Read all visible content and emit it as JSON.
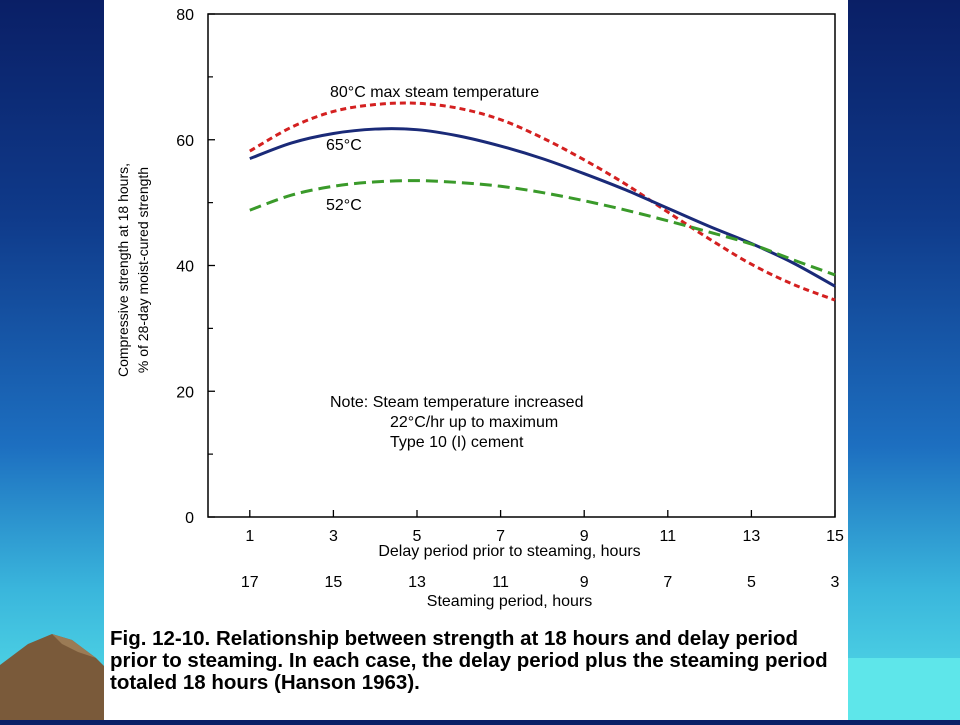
{
  "chart_data": {
    "type": "line",
    "ylabel": "Compressive strength at 18 hours, % of 28-day moist-cured strength",
    "ylabel_lines": [
      "Compressive strength at 18 hours,",
      "% of 28-day moist-cured strength"
    ],
    "xlabel": "Delay period prior to steaming, hours",
    "x2label": "Steaming period, hours",
    "ylim": [
      0,
      80
    ],
    "xlim": [
      0,
      15
    ],
    "yticks": [
      0,
      20,
      40,
      60,
      80
    ],
    "xticks": [
      1,
      3,
      5,
      7,
      9,
      11,
      13,
      15
    ],
    "x2ticks": [
      17,
      15,
      13,
      11,
      9,
      7,
      5,
      3
    ],
    "grid": false,
    "series": [
      {
        "name": "80°C max steam temperature",
        "color": "#d42020",
        "dash": "short-dash",
        "x": [
          1,
          2,
          3,
          4,
          5,
          6,
          7,
          8,
          9,
          10,
          11,
          12,
          13,
          14,
          15
        ],
        "y": [
          58.2,
          62.0,
          64.5,
          65.6,
          65.8,
          65.0,
          63.2,
          60.3,
          56.8,
          52.9,
          48.5,
          44.2,
          40.2,
          37.0,
          34.5
        ]
      },
      {
        "name": "65°C",
        "color": "#1a2a78",
        "dash": "solid",
        "x": [
          1,
          2,
          3,
          4,
          5,
          6,
          7,
          8,
          9,
          10,
          11,
          12,
          13,
          14,
          15
        ],
        "y": [
          57.0,
          59.5,
          61.0,
          61.7,
          61.6,
          60.6,
          59.0,
          57.0,
          54.6,
          52.0,
          49.1,
          46.2,
          43.5,
          40.4,
          36.7
        ]
      },
      {
        "name": "52°C",
        "color": "#3a9a2a",
        "dash": "long-dash",
        "x": [
          1,
          2,
          3,
          4,
          5,
          6,
          7,
          8,
          9,
          10,
          11,
          12,
          13,
          14,
          15
        ],
        "y": [
          48.8,
          51.2,
          52.6,
          53.3,
          53.5,
          53.2,
          52.6,
          51.6,
          50.3,
          48.8,
          47.1,
          45.3,
          43.4,
          40.9,
          38.5
        ]
      }
    ],
    "series_labels": [
      "80°C max steam temperature",
      "65°C",
      "52°C"
    ],
    "note_lines": [
      "Note:  Steam temperature increased",
      "22°C/hr up to maximum",
      "Type 10 (I) cement"
    ]
  },
  "caption": "Fig. 12-10. Relationship between strength at 18 hours and delay period prior to steaming. In each case, the delay period plus the steaming period totaled 18 hours (Hanson 1963)."
}
